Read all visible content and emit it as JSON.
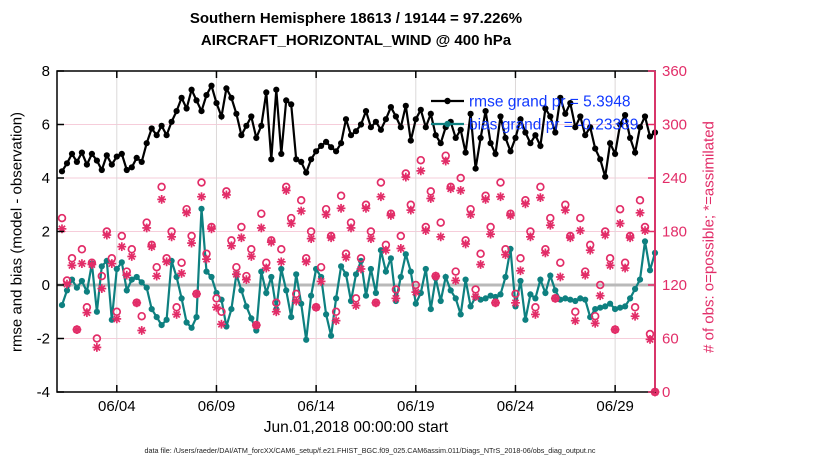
{
  "footer": {
    "text": "data file: /Users/raeder/DAI/ATM_forcXX/CAM6_setup/f.e21.FHIST_BGC.f09_025.CAM6assim.011/Diags_NTrS_2018-06/obs_diag_output.nc"
  },
  "chart_data": {
    "type": "line+scatter",
    "title": "Southern Hemisphere 18613 / 19144 = 97.226%",
    "subtitle": "AIRCRAFT_HORIZONTAL_WIND @ 400 hPa",
    "x_axis": {
      "label": "Jun.01,2018 00:00:00 start",
      "range_days": [
        0,
        30
      ],
      "tick_days": [
        3,
        8,
        13,
        18,
        23,
        28
      ],
      "tick_labels": [
        "06/04",
        "06/09",
        "06/14",
        "06/19",
        "06/24",
        "06/29"
      ]
    },
    "left_axis": {
      "label": "rmse and bias (model - observation)",
      "range": [
        -4,
        8
      ],
      "ticks": [
        8,
        6,
        4,
        2,
        0,
        -2,
        -4
      ],
      "color": "#000000"
    },
    "right_axis": {
      "label": "# of obs: o=possible; *=assimilated",
      "range": [
        0,
        360
      ],
      "ticks": [
        360,
        300,
        240,
        180,
        120,
        60,
        0
      ],
      "color": "#e22d68"
    },
    "grid": {
      "h_color": "#f6cdda",
      "v_color": "#dcd8d8",
      "zero_line_color": "#b9b9b9"
    },
    "t_start": 0.25,
    "t_step": 0.25,
    "n_points": 120,
    "legend": {
      "text_color": "#1038ff",
      "entries": [
        {
          "label": "rmse grand pr = 5.3948",
          "color": "#000000"
        },
        {
          "label": "bias grand pr = -0.23389",
          "color": "#0e8080"
        }
      ]
    },
    "series": [
      {
        "name": "rmse",
        "axis": "left",
        "color": "#000000",
        "marker": "filled-circle",
        "line": true,
        "values": [
          4.25,
          4.55,
          4.9,
          4.6,
          4.95,
          4.5,
          4.9,
          4.65,
          4.3,
          4.85,
          4.5,
          4.8,
          4.9,
          4.3,
          4.4,
          4.75,
          4.6,
          5.3,
          5.85,
          5.6,
          5.95,
          5.6,
          6.1,
          6.5,
          7.0,
          6.6,
          7.3,
          6.9,
          6.5,
          7.1,
          7.45,
          6.8,
          6.3,
          7.35,
          7.0,
          6.4,
          5.6,
          5.95,
          6.3,
          5.5,
          5.95,
          7.2,
          4.7,
          7.3,
          4.9,
          6.9,
          6.75,
          4.7,
          4.6,
          4.2,
          4.7,
          5.0,
          5.2,
          5.35,
          5.15,
          5.0,
          5.3,
          6.2,
          5.6,
          5.75,
          6.0,
          6.5,
          5.9,
          6.1,
          5.8,
          6.2,
          6.65,
          6.3,
          5.9,
          6.7,
          5.4,
          6.2,
          6.55,
          5.9,
          6.4,
          5.6,
          5.3,
          5.9,
          6.1,
          5.5,
          5.8,
          4.95,
          6.4,
          4.35,
          5.5,
          6.5,
          5.3,
          4.9,
          6.3,
          5.5,
          5.0,
          5.5,
          6.2,
          5.7,
          5.3,
          5.6,
          5.2,
          6.6,
          6.3,
          5.7,
          7.0,
          6.4,
          6.8,
          5.9,
          6.3,
          5.6,
          5.9,
          5.1,
          4.7,
          4.05,
          5.3,
          4.9,
          6.0,
          6.35,
          5.5,
          4.95,
          5.9,
          6.3,
          5.55,
          5.7
        ]
      },
      {
        "name": "bias",
        "axis": "left",
        "color": "#0e8080",
        "marker": "filled-circle",
        "line": true,
        "values": [
          -0.75,
          -0.2,
          0.2,
          -0.1,
          0.15,
          -0.25,
          0.8,
          -1.0,
          0.7,
          0.9,
          -1.3,
          0.6,
          0.85,
          -0.2,
          0.2,
          0.3,
          0.1,
          -0.1,
          -0.9,
          -1.2,
          -1.5,
          -1.3,
          0.9,
          0.3,
          -0.5,
          -1.4,
          -1.6,
          -1.2,
          2.85,
          0.5,
          0.3,
          -0.3,
          -0.55,
          -1.55,
          -0.9,
          0.4,
          -0.2,
          -0.8,
          -1.25,
          -1.7,
          0.5,
          -0.3,
          0.3,
          -0.9,
          0.6,
          -0.2,
          -1.2,
          0.4,
          -0.7,
          -2.05,
          -0.4,
          0.6,
          0.3,
          -1.1,
          -1.9,
          -0.5,
          0.7,
          0.4,
          -0.6,
          0.4,
          0.9,
          -0.4,
          0.6,
          -0.3,
          1.3,
          0.5,
          1.0,
          -0.6,
          0.3,
          1.15,
          0.5,
          -0.7,
          -0.3,
          0.6,
          -0.9,
          0.25,
          -0.6,
          0.3,
          -0.2,
          -0.5,
          -1.1,
          0.2,
          -0.8,
          -0.45,
          -0.55,
          -0.5,
          -0.4,
          -0.45,
          -0.35,
          0.3,
          1.35,
          -0.8,
          0.15,
          -1.3,
          -0.35,
          -0.5,
          0.2,
          -0.3,
          0.35,
          -0.2,
          -0.55,
          -0.5,
          -0.55,
          -0.6,
          -0.5,
          -0.55,
          -1.2,
          -0.9,
          -0.85,
          -0.8,
          -0.7,
          -0.9,
          -0.85,
          -0.8,
          -0.5,
          -0.15,
          0.2,
          1.63,
          0.55,
          1.2
        ]
      },
      {
        "name": "possible",
        "axis": "right",
        "color": "#e22d68",
        "marker": "open-circle",
        "line": false,
        "values": [
          195,
          125,
          150,
          70,
          160,
          95,
          145,
          60,
          130,
          180,
          150,
          90,
          175,
          135,
          160,
          100,
          85,
          190,
          165,
          140,
          230,
          150,
          180,
          95,
          145,
          205,
          175,
          110,
          235,
          155,
          185,
          105,
          90,
          225,
          170,
          140,
          185,
          130,
          160,
          75,
          200,
          145,
          170,
          100,
          160,
          230,
          195,
          110,
          215,
          150,
          180,
          95,
          140,
          205,
          175,
          90,
          220,
          155,
          190,
          105,
          150,
          210,
          180,
          100,
          235,
          165,
          200,
          115,
          175,
          245,
          210,
          120,
          260,
          185,
          225,
          130,
          190,
          265,
          230,
          135,
          240,
          170,
          205,
          115,
          155,
          220,
          185,
          100,
          235,
          160,
          200,
          110,
          150,
          215,
          180,
          95,
          230,
          160,
          195,
          105,
          145,
          210,
          175,
          90,
          195,
          135,
          165,
          85,
          120,
          180,
          150,
          70,
          205,
          145,
          175,
          95,
          215,
          185,
          65,
          0
        ]
      },
      {
        "name": "assimilated",
        "axis": "right",
        "color": "#e22d68",
        "marker": "asterisk",
        "line": false,
        "values": [
          183,
          121,
          142,
          70,
          144,
          89,
          143,
          50,
          116,
          176,
          144,
          82,
          163,
          131,
          152,
          100,
          69,
          184,
          163,
          130,
          216,
          146,
          174,
          87,
          133,
          201,
          167,
          110,
          219,
          149,
          183,
          95,
          76,
          221,
          164,
          132,
          173,
          126,
          152,
          75,
          184,
          139,
          168,
          90,
          146,
          226,
          189,
          102,
          203,
          146,
          172,
          95,
          124,
          199,
          173,
          80,
          206,
          151,
          184,
          97,
          138,
          206,
          172,
          100,
          219,
          159,
          198,
          105,
          161,
          241,
          204,
          112,
          248,
          181,
          217,
          130,
          174,
          259,
          228,
          125,
          226,
          166,
          199,
          107,
          143,
          216,
          177,
          100,
          219,
          154,
          198,
          100,
          136,
          211,
          174,
          87,
          218,
          156,
          187,
          105,
          129,
          204,
          173,
          80,
          181,
          131,
          159,
          77,
          108,
          176,
          142,
          70,
          189,
          139,
          173,
          85,
          201,
          181,
          59,
          0
        ]
      }
    ]
  }
}
